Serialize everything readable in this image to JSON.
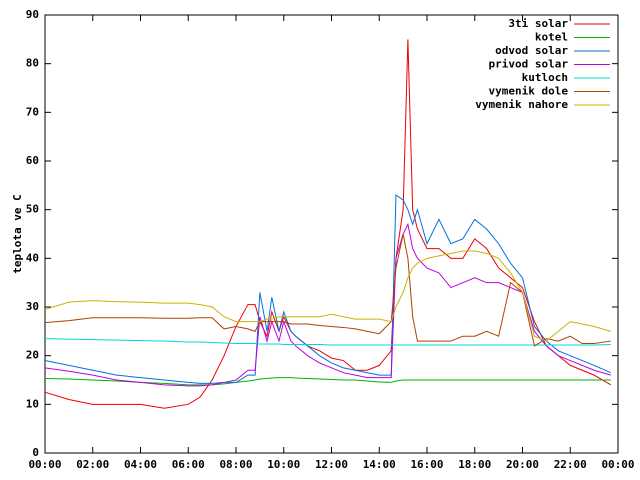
{
  "chart_data": {
    "type": "line",
    "ylabel": "teplota ve C",
    "x": [
      0,
      1,
      2,
      3,
      4,
      5,
      6,
      6.5,
      7,
      7.5,
      8,
      8.5,
      8.8,
      9,
      9.3,
      9.5,
      9.8,
      10,
      10.3,
      10.5,
      11,
      11.5,
      12,
      12.5,
      13,
      13.5,
      14,
      14.5,
      14.7,
      15,
      15.2,
      15.4,
      15.6,
      16,
      16.5,
      17,
      17.5,
      18,
      18.5,
      19,
      19.5,
      20,
      20.5,
      21,
      21.5,
      22,
      22.5,
      23,
      23.7
    ],
    "xlim": [
      0,
      24
    ],
    "xticks": [
      {
        "value": 0,
        "label": "00:00"
      },
      {
        "value": 2,
        "label": "02:00"
      },
      {
        "value": 4,
        "label": "04:00"
      },
      {
        "value": 6,
        "label": "06:00"
      },
      {
        "value": 8,
        "label": "08:00"
      },
      {
        "value": 10,
        "label": "10:00"
      },
      {
        "value": 12,
        "label": "12:00"
      },
      {
        "value": 14,
        "label": "14:00"
      },
      {
        "value": 16,
        "label": "16:00"
      },
      {
        "value": 18,
        "label": "18:00"
      },
      {
        "value": 20,
        "label": "20:00"
      },
      {
        "value": 22,
        "label": "22:00"
      },
      {
        "value": 24,
        "label": "00:00"
      }
    ],
    "ylim": [
      0,
      90
    ],
    "yticks": [
      0,
      10,
      20,
      30,
      40,
      50,
      60,
      70,
      80,
      90
    ],
    "grid": false,
    "legend": "top-right",
    "series": [
      {
        "name": "3ti solar",
        "color": "#ee0000",
        "values": [
          12.5,
          11,
          10,
          10,
          10,
          9.2,
          10,
          11.5,
          15,
          20,
          26,
          30.5,
          30.5,
          27,
          24,
          29,
          25,
          28,
          25,
          24,
          22,
          21,
          19.5,
          19,
          17,
          17,
          18,
          21,
          40,
          50,
          85,
          50,
          46,
          42,
          42,
          40,
          40,
          44,
          42,
          38,
          36,
          34,
          27,
          22,
          20,
          18,
          17,
          16,
          14
        ]
      },
      {
        "name": "kotel",
        "color": "#00b000",
        "values": [
          15.3,
          15.2,
          15,
          14.8,
          14.5,
          14.3,
          14,
          14,
          14,
          14.2,
          14.5,
          14.8,
          15,
          15.2,
          15.3,
          15.4,
          15.5,
          15.5,
          15.5,
          15.4,
          15.3,
          15.2,
          15.1,
          15,
          15,
          14.8,
          14.6,
          14.5,
          14.8,
          15,
          15,
          15,
          15,
          15,
          15,
          15,
          15,
          15,
          15,
          15,
          15,
          15,
          15,
          15,
          15,
          15,
          15,
          15,
          15
        ]
      },
      {
        "name": "odvod solar",
        "color": "#0070e0",
        "values": [
          19,
          18,
          17,
          16,
          15.5,
          15,
          14.5,
          14.3,
          14.3,
          14.5,
          14.5,
          16,
          16,
          33,
          25,
          32,
          25,
          29,
          25,
          24,
          22,
          20,
          18.5,
          17.5,
          17,
          16.5,
          16,
          16,
          53,
          52,
          50,
          47,
          50,
          43,
          48,
          43,
          44,
          48,
          46,
          43,
          39,
          36,
          26,
          23,
          21,
          20,
          19,
          18,
          16.5
        ]
      },
      {
        "name": "privod solar",
        "color": "#c000e0",
        "values": [
          17.5,
          16.8,
          16,
          15,
          14.5,
          14,
          13.8,
          13.8,
          14,
          14.5,
          15,
          17,
          17,
          28,
          23,
          27,
          23,
          27,
          23,
          22,
          20,
          18.5,
          17.5,
          16.5,
          16,
          15.5,
          15.5,
          15.5,
          40,
          45,
          47,
          42,
          40,
          38,
          37,
          34,
          35,
          36,
          35,
          35,
          34,
          33,
          25,
          22,
          20,
          19,
          18,
          17,
          16
        ]
      },
      {
        "name": "kutloch",
        "color": "#00d8d8",
        "values": [
          23.5,
          23.4,
          23.3,
          23.2,
          23.1,
          23,
          22.8,
          22.8,
          22.7,
          22.6,
          22.5,
          22.5,
          22.5,
          22.4,
          22.4,
          22.4,
          22.4,
          22.3,
          22.3,
          22.3,
          22.3,
          22.3,
          22.2,
          22.2,
          22.2,
          22.2,
          22.2,
          22.2,
          22.2,
          22.2,
          22.2,
          22.2,
          22.2,
          22.2,
          22.2,
          22.2,
          22.2,
          22.2,
          22.2,
          22.2,
          22.2,
          22.2,
          22.2,
          22.2,
          22.2,
          22.2,
          22.2,
          22.2,
          22.3
        ]
      },
      {
        "name": "vymenik dole",
        "color": "#b04000",
        "values": [
          26.8,
          27.2,
          27.8,
          27.8,
          27.8,
          27.7,
          27.7,
          27.8,
          27.8,
          25.5,
          26,
          25.5,
          25,
          27,
          27,
          27,
          27,
          27,
          26.5,
          26.5,
          26.5,
          26.2,
          26,
          25.8,
          25.5,
          25,
          24.5,
          27,
          38,
          45,
          40,
          28,
          23,
          23,
          23,
          23,
          24,
          24,
          25,
          24,
          35,
          33,
          22,
          23.5,
          23,
          24,
          22.5,
          22.5,
          23
        ]
      },
      {
        "name": "vymenik nahore",
        "color": "#c8b400",
        "values": [
          29.5,
          31,
          31.3,
          31.1,
          31,
          30.8,
          30.8,
          30.5,
          30,
          28,
          27,
          27,
          27,
          27,
          27.5,
          27.5,
          28,
          28,
          28,
          28,
          28,
          28,
          28.5,
          28,
          27.5,
          27.5,
          27.5,
          27,
          30,
          33,
          36,
          38,
          39,
          40,
          40.5,
          41,
          41.5,
          41.5,
          41,
          40,
          37,
          33,
          24,
          23,
          25,
          27,
          26.5,
          26,
          25
        ]
      }
    ]
  }
}
